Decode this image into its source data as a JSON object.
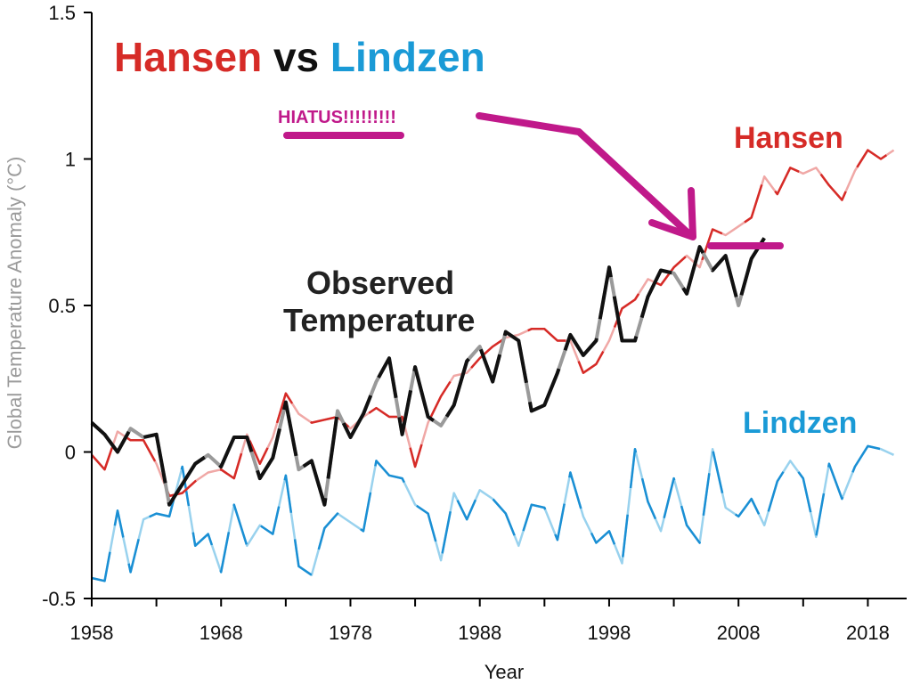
{
  "chart_data": {
    "type": "line",
    "title_parts": [
      {
        "text": "Hansen",
        "color": "#d62b27"
      },
      {
        "text": " vs ",
        "color": "#111111"
      },
      {
        "text": "Lindzen",
        "color": "#1a9ad6"
      }
    ],
    "xlabel": "Year",
    "ylabel": "Global Temperature Anomaly (°C)",
    "xlim": [
      1958,
      2021
    ],
    "ylim": [
      -0.5,
      1.5
    ],
    "x_ticks": [
      1958,
      1968,
      1978,
      1988,
      1998,
      2008,
      2018
    ],
    "x_minor_ticks": [
      1963,
      1973,
      1983,
      1993,
      2003,
      2013
    ],
    "y_ticks": [
      -0.5,
      0,
      0.5,
      1,
      1.5
    ],
    "y_tick_labels": [
      "-0.5",
      "0",
      "0.5",
      "1",
      "1.5"
    ],
    "grid": false,
    "series": [
      {
        "name": "Hansen",
        "color": "#d62b27",
        "faded_color": "#f0a8a6",
        "x": [
          1958,
          1959,
          1960,
          1961,
          1962,
          1963,
          1964,
          1965,
          1966,
          1967,
          1968,
          1969,
          1970,
          1971,
          1972,
          1973,
          1974,
          1975,
          1976,
          1977,
          1978,
          1979,
          1980,
          1981,
          1982,
          1983,
          1984,
          1985,
          1986,
          1987,
          1988,
          1989,
          1990,
          1991,
          1992,
          1993,
          1994,
          1995,
          1996,
          1997,
          1998,
          1999,
          2000,
          2001,
          2002,
          2003,
          2004,
          2005,
          2006,
          2007,
          2008,
          2009,
          2010,
          2011,
          2012,
          2013,
          2014,
          2015,
          2016,
          2017,
          2018,
          2019,
          2020
        ],
        "values": [
          -0.01,
          -0.06,
          0.07,
          0.04,
          0.04,
          -0.04,
          -0.15,
          -0.14,
          -0.1,
          -0.07,
          -0.06,
          -0.09,
          0.06,
          -0.04,
          0.05,
          0.2,
          0.13,
          0.1,
          0.11,
          0.12,
          0.08,
          0.12,
          0.15,
          0.12,
          0.12,
          -0.05,
          0.1,
          0.19,
          0.26,
          0.27,
          0.32,
          0.36,
          0.39,
          0.4,
          0.42,
          0.42,
          0.38,
          0.38,
          0.27,
          0.3,
          0.38,
          0.49,
          0.52,
          0.59,
          0.57,
          0.63,
          0.67,
          0.63,
          0.76,
          0.74,
          0.77,
          0.8,
          0.94,
          0.88,
          0.97,
          0.95,
          0.97,
          0.91,
          0.86,
          0.96,
          1.03,
          1.0,
          1.03
        ],
        "label": "Hansen"
      },
      {
        "name": "Lindzen",
        "color": "#1a8fd4",
        "faded_color": "#99d2ee",
        "x": [
          1958,
          1959,
          1960,
          1961,
          1962,
          1963,
          1964,
          1965,
          1966,
          1967,
          1968,
          1969,
          1970,
          1971,
          1972,
          1973,
          1974,
          1975,
          1976,
          1977,
          1978,
          1979,
          1980,
          1981,
          1982,
          1983,
          1984,
          1985,
          1986,
          1987,
          1988,
          1989,
          1990,
          1991,
          1992,
          1993,
          1994,
          1995,
          1996,
          1997,
          1998,
          1999,
          2000,
          2001,
          2002,
          2003,
          2004,
          2005,
          2006,
          2007,
          2008,
          2009,
          2010,
          2011,
          2012,
          2013,
          2014,
          2015,
          2016,
          2017,
          2018,
          2019,
          2020
        ],
        "values": [
          -0.43,
          -0.44,
          -0.2,
          -0.41,
          -0.23,
          -0.21,
          -0.22,
          -0.05,
          -0.32,
          -0.28,
          -0.41,
          -0.18,
          -0.32,
          -0.25,
          -0.28,
          -0.08,
          -0.39,
          -0.42,
          -0.26,
          -0.21,
          -0.24,
          -0.27,
          -0.03,
          -0.08,
          -0.09,
          -0.18,
          -0.21,
          -0.37,
          -0.14,
          -0.23,
          -0.13,
          -0.16,
          -0.21,
          -0.32,
          -0.18,
          -0.19,
          -0.3,
          -0.07,
          -0.22,
          -0.31,
          -0.27,
          -0.38,
          0.01,
          -0.17,
          -0.27,
          -0.09,
          -0.25,
          -0.31,
          0.01,
          -0.19,
          -0.22,
          -0.16,
          -0.25,
          -0.1,
          -0.03,
          -0.09,
          -0.29,
          -0.04,
          -0.16,
          -0.05,
          0.02,
          0.01,
          -0.01
        ],
        "label": "Lindzen"
      },
      {
        "name": "Observed Temperature",
        "color": "#111111",
        "faded_color": "#9a9a9a",
        "x": [
          1958,
          1959,
          1960,
          1961,
          1962,
          1963,
          1964,
          1965,
          1966,
          1967,
          1968,
          1969,
          1970,
          1971,
          1972,
          1973,
          1974,
          1975,
          1976,
          1977,
          1978,
          1979,
          1980,
          1981,
          1982,
          1983,
          1984,
          1985,
          1986,
          1987,
          1988,
          1989,
          1990,
          1991,
          1992,
          1993,
          1994,
          1995,
          1996,
          1997,
          1998,
          1999,
          2000,
          2001,
          2002,
          2003,
          2004,
          2005,
          2006,
          2007,
          2008,
          2009,
          2010
        ],
        "values": [
          0.1,
          0.06,
          0.0,
          0.08,
          0.05,
          0.06,
          -0.18,
          -0.11,
          -0.04,
          -0.01,
          -0.05,
          0.05,
          0.05,
          -0.09,
          -0.02,
          0.17,
          -0.06,
          -0.03,
          -0.18,
          0.14,
          0.05,
          0.13,
          0.24,
          0.32,
          0.06,
          0.29,
          0.12,
          0.09,
          0.16,
          0.31,
          0.36,
          0.24,
          0.41,
          0.38,
          0.14,
          0.16,
          0.27,
          0.4,
          0.33,
          0.38,
          0.63,
          0.38,
          0.38,
          0.53,
          0.62,
          0.61,
          0.54,
          0.7,
          0.62,
          0.67,
          0.5,
          0.66,
          0.73
        ],
        "label_lines": [
          "Observed",
          "Temperature"
        ]
      }
    ],
    "annotations": {
      "hiatus_text": "HIATUS!!!!!!!!!",
      "hiatus_color": "#c0198a"
    }
  }
}
